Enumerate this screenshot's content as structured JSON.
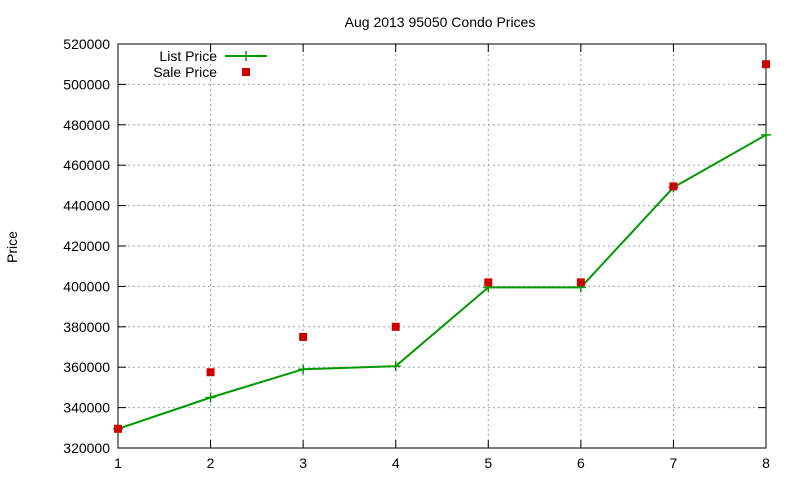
{
  "chart_data": {
    "type": "line",
    "title": "Aug 2013 95050 Condo Prices",
    "xlabel": "",
    "ylabel": "Price",
    "x": [
      1,
      2,
      3,
      4,
      5,
      6,
      7,
      8
    ],
    "xlim": [
      1,
      8
    ],
    "ylim": [
      320000,
      520000
    ],
    "x_ticks": [
      "1",
      "2",
      "3",
      "4",
      "5",
      "6",
      "7",
      "8"
    ],
    "y_ticks": [
      "320000",
      "340000",
      "360000",
      "380000",
      "400000",
      "420000",
      "440000",
      "460000",
      "480000",
      "500000",
      "520000"
    ],
    "grid": true,
    "legend_position": "top-left",
    "series": [
      {
        "name": "List Price",
        "style": "line+cross",
        "color": "#009900",
        "values": [
          329500,
          345000,
          359000,
          360500,
          399500,
          399500,
          449000,
          475000
        ]
      },
      {
        "name": "Sale Price",
        "style": "square-markers",
        "color": "#cc0000",
        "values": [
          329500,
          357500,
          375000,
          380000,
          402000,
          402000,
          449500,
          510000
        ]
      }
    ]
  }
}
